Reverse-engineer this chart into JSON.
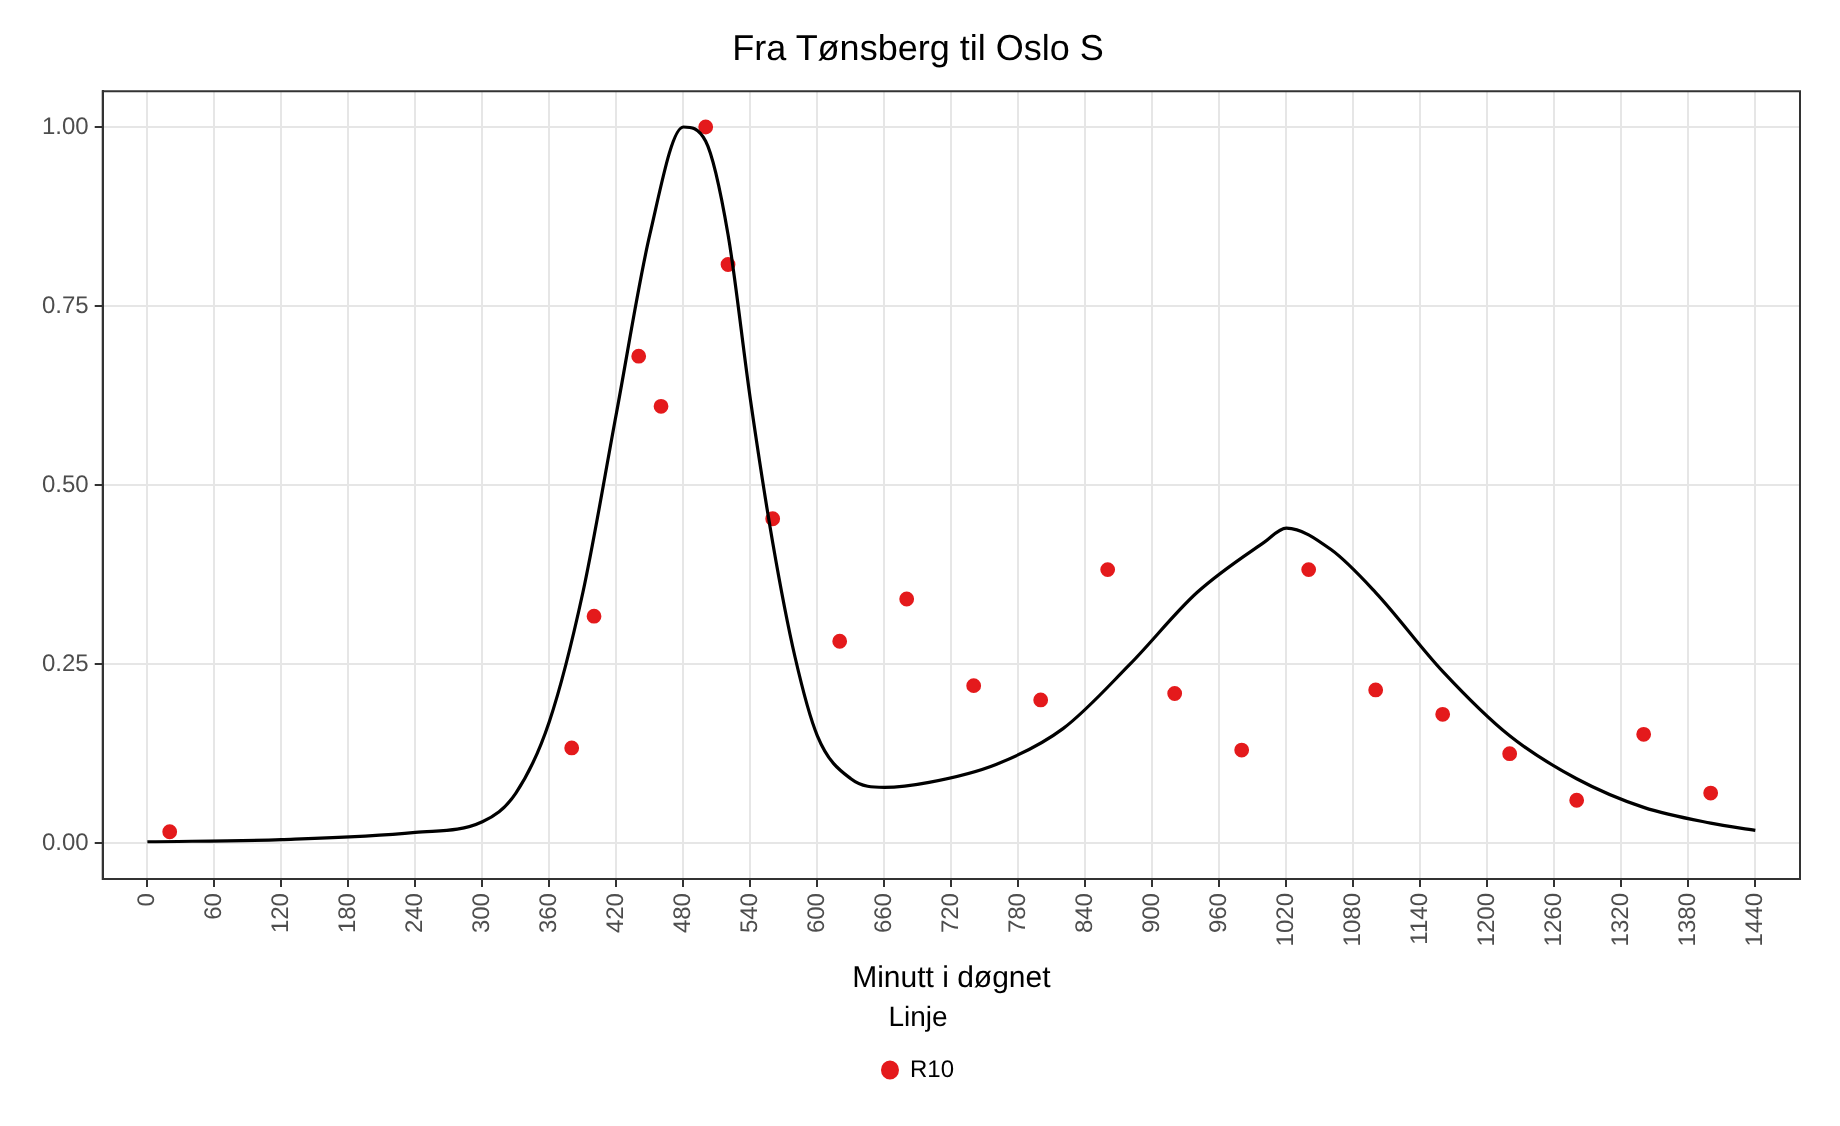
{
  "chart_data": {
    "type": "scatter",
    "title": "Fra Tønsberg til Oslo S",
    "xlabel": "Minutt i døgnet",
    "legend_title": "Linje",
    "legend": "bottom",
    "grid": true,
    "marker": "circle",
    "xlim": [
      -40,
      1480
    ],
    "xticks": [
      0,
      60,
      120,
      180,
      240,
      300,
      360,
      420,
      480,
      540,
      600,
      660,
      720,
      780,
      840,
      900,
      960,
      1020,
      1080,
      1140,
      1200,
      1260,
      1320,
      1380,
      1440
    ],
    "ylim": [
      -0.05,
      1.05
    ],
    "yticks": [
      {
        "value": 0,
        "label": "0.00"
      },
      {
        "value": 0.25,
        "label": "0.25"
      },
      {
        "value": 0.5,
        "label": "0.50"
      },
      {
        "value": 0.75,
        "label": "0.75"
      },
      {
        "value": 1,
        "label": "1.00"
      }
    ],
    "series": [
      {
        "type": "line",
        "color": "#000000",
        "marker": "none",
        "x": [
          0,
          120,
          240,
          300,
          330,
          360,
          390,
          420,
          450,
          480,
          500,
          520,
          540,
          560,
          580,
          600,
          630,
          660,
          700,
          760,
          820,
          880,
          940,
          1000,
          1020,
          1060,
          1100,
          1160,
          1220,
          1280,
          1340,
          1400,
          1440
        ],
        "values": [
          0.002,
          0.005,
          0.015,
          0.03,
          0.07,
          0.17,
          0.35,
          0.6,
          0.85,
          1.0,
          0.98,
          0.85,
          0.62,
          0.42,
          0.26,
          0.15,
          0.09,
          0.078,
          0.085,
          0.11,
          0.16,
          0.25,
          0.35,
          0.42,
          0.44,
          0.41,
          0.35,
          0.24,
          0.15,
          0.09,
          0.05,
          0.028,
          0.018
        ]
      },
      {
        "type": "scatter",
        "name": "R10",
        "color": "#e41a1c",
        "x": [
          20,
          380,
          400,
          440,
          460,
          500,
          520,
          560,
          620,
          680,
          740,
          800,
          860,
          920,
          980,
          1040,
          1100,
          1160,
          1220,
          1280,
          1340,
          1400
        ],
        "values": [
          0.016,
          0.133,
          0.317,
          0.68,
          0.61,
          1.0,
          0.808,
          0.453,
          0.282,
          0.341,
          0.22,
          0.2,
          0.382,
          0.209,
          0.13,
          0.382,
          0.214,
          0.18,
          0.125,
          0.06,
          0.152,
          0.07
        ]
      }
    ]
  }
}
